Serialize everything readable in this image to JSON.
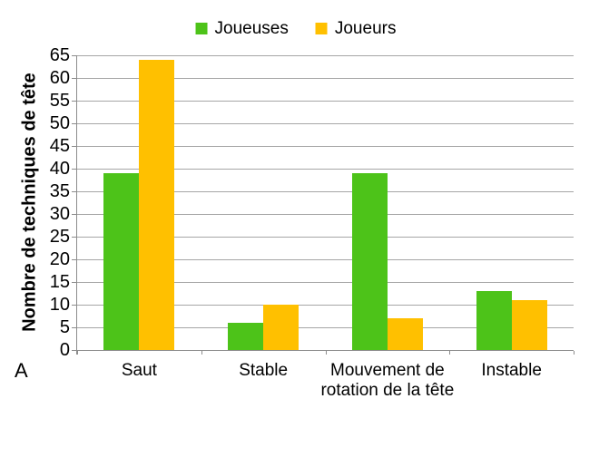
{
  "figure_label": "A",
  "colors": {
    "joueuses": "#4DC319",
    "joueurs": "#FFC000",
    "gridline": "#A6A6A6",
    "axis": "#8C8C8C",
    "text": "#000000",
    "background": "#FFFFFF"
  },
  "legend": {
    "items": [
      {
        "label": "Joueuses",
        "color_key": "joueuses"
      },
      {
        "label": "Joueurs",
        "color_key": "joueurs"
      }
    ]
  },
  "chart_data": {
    "type": "bar",
    "title": "",
    "xlabel": "",
    "ylabel": "Nombre de techniques de tête",
    "categories": [
      "Saut",
      "Stable",
      "Mouvement de rotation de la tête",
      "Instable"
    ],
    "series": [
      {
        "name": "Joueuses",
        "color": "#4DC319",
        "values": [
          39,
          6,
          39,
          13
        ]
      },
      {
        "name": "Joueurs",
        "color": "#FFC000",
        "values": [
          64,
          10,
          7,
          11
        ]
      }
    ],
    "ylim": [
      0,
      65
    ],
    "ytick_step": 5,
    "ytick_labels": [
      "0",
      "5",
      "10",
      "15",
      "20",
      "25",
      "30",
      "35",
      "40",
      "45",
      "50",
      "55",
      "60",
      "65"
    ],
    "grid": true,
    "legend_position": "top-center",
    "panel_label": "A"
  }
}
